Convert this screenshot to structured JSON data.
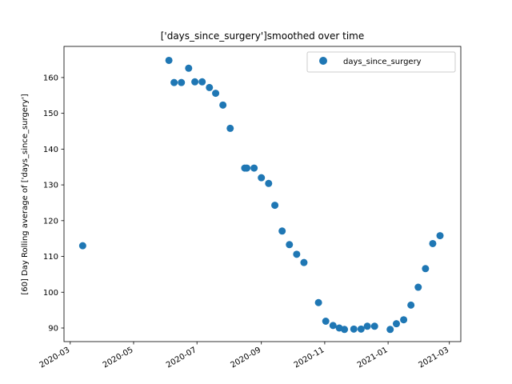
{
  "chart_data": {
    "type": "scatter",
    "title": "['days_since_surgery']smoothed over time",
    "xlabel": "",
    "ylabel": "[60] Day Rolling average of ['days_since_surgery']",
    "xlim": [
      "2020-02-24",
      "2021-03-12"
    ],
    "ylim": [
      86.2,
      168.7
    ],
    "x_ticks": [
      "2020-03",
      "2020-05",
      "2020-07",
      "2020-09",
      "2020-11",
      "2021-01",
      "2021-03"
    ],
    "y_ticks": [
      90,
      100,
      110,
      120,
      130,
      140,
      150,
      160
    ],
    "grid": false,
    "legend_position": "top-right",
    "marker_color": "#1f77b4",
    "series": [
      {
        "name": "days_since_surgery",
        "points": [
          {
            "x": "2020-03-13",
            "y": 113.0
          },
          {
            "x": "2020-06-04",
            "y": 164.8
          },
          {
            "x": "2020-06-09",
            "y": 158.6
          },
          {
            "x": "2020-06-16",
            "y": 158.6
          },
          {
            "x": "2020-06-23",
            "y": 162.6
          },
          {
            "x": "2020-06-29",
            "y": 158.8
          },
          {
            "x": "2020-07-06",
            "y": 158.8
          },
          {
            "x": "2020-07-13",
            "y": 157.2
          },
          {
            "x": "2020-07-19",
            "y": 155.6
          },
          {
            "x": "2020-07-26",
            "y": 152.3
          },
          {
            "x": "2020-08-02",
            "y": 145.8
          },
          {
            "x": "2020-08-16",
            "y": 134.7
          },
          {
            "x": "2020-08-18",
            "y": 134.7
          },
          {
            "x": "2020-08-25",
            "y": 134.7
          },
          {
            "x": "2020-09-01",
            "y": 132.0
          },
          {
            "x": "2020-09-08",
            "y": 130.4
          },
          {
            "x": "2020-09-14",
            "y": 124.3
          },
          {
            "x": "2020-09-21",
            "y": 117.1
          },
          {
            "x": "2020-09-28",
            "y": 113.3
          },
          {
            "x": "2020-10-05",
            "y": 110.6
          },
          {
            "x": "2020-10-12",
            "y": 108.3
          },
          {
            "x": "2020-10-26",
            "y": 97.1
          },
          {
            "x": "2020-11-02",
            "y": 91.9
          },
          {
            "x": "2020-11-09",
            "y": 90.7
          },
          {
            "x": "2020-11-15",
            "y": 90.0
          },
          {
            "x": "2020-11-20",
            "y": 89.6
          },
          {
            "x": "2020-11-29",
            "y": 89.7
          },
          {
            "x": "2020-12-06",
            "y": 89.7
          },
          {
            "x": "2020-12-12",
            "y": 90.5
          },
          {
            "x": "2020-12-19",
            "y": 90.5
          },
          {
            "x": "2021-01-03",
            "y": 89.6
          },
          {
            "x": "2021-01-09",
            "y": 91.2
          },
          {
            "x": "2021-01-16",
            "y": 92.3
          },
          {
            "x": "2021-01-23",
            "y": 96.4
          },
          {
            "x": "2021-01-30",
            "y": 101.4
          },
          {
            "x": "2021-02-06",
            "y": 106.6
          },
          {
            "x": "2021-02-13",
            "y": 113.6
          },
          {
            "x": "2021-02-20",
            "y": 115.8
          }
        ]
      }
    ]
  }
}
